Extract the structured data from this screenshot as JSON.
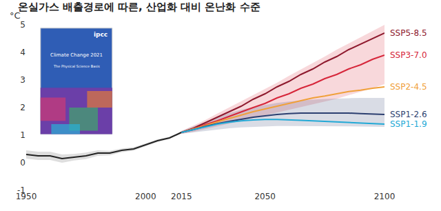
{
  "chart_data": {
    "type": "line",
    "title": "온실가스 배출경로에 따른, 산업화 대비 온난화 수준",
    "ylabel": "°C",
    "annotations": [
      "ipcc",
      "Climate Change 2021",
      "The Physical Science Basis"
    ],
    "x": [
      1950,
      1955,
      1960,
      1965,
      1970,
      1975,
      1980,
      1985,
      1990,
      1995,
      2000,
      2005,
      2010,
      2015,
      2020,
      2025,
      2030,
      2035,
      2040,
      2045,
      2050,
      2055,
      2060,
      2065,
      2070,
      2075,
      2080,
      2085,
      2090,
      2095,
      2100
    ],
    "xlim": [
      1950,
      2100
    ],
    "xticks": [
      1950,
      2000,
      2015,
      2050,
      2100
    ],
    "ylim": [
      -1,
      5
    ],
    "yticks": [
      -1,
      0,
      1,
      2,
      3,
      4,
      5
    ],
    "grid": false,
    "series": [
      {
        "color": "#222222",
        "values": [
          0.3,
          0.25,
          0.25,
          0.15,
          0.2,
          0.25,
          0.35,
          0.35,
          0.45,
          0.5,
          0.65,
          0.8,
          0.9,
          1.1,
          null,
          null,
          null,
          null,
          null,
          null,
          null,
          null,
          null,
          null,
          null,
          null,
          null,
          null,
          null,
          null,
          null
        ],
        "lower": [
          0.15,
          0.1,
          0.1,
          0.0,
          0.08,
          0.13,
          0.25,
          0.27,
          0.38,
          0.44,
          0.6,
          0.75,
          0.86,
          1.06,
          null,
          null,
          null,
          null,
          null,
          null,
          null,
          null,
          null,
          null,
          null,
          null,
          null,
          null,
          null,
          null,
          null
        ],
        "upper": [
          0.45,
          0.4,
          0.4,
          0.3,
          0.32,
          0.37,
          0.45,
          0.43,
          0.52,
          0.56,
          0.7,
          0.85,
          0.94,
          1.14,
          null,
          null,
          null,
          null,
          null,
          null,
          null,
          null,
          null,
          null,
          null,
          null,
          null,
          null,
          null,
          null,
          null
        ]
      },
      {
        "name": "SSP5-8.5",
        "color": "#8e1a2e",
        "values": [
          null,
          null,
          null,
          null,
          null,
          null,
          null,
          null,
          null,
          null,
          null,
          null,
          null,
          1.1,
          1.25,
          1.45,
          1.65,
          1.85,
          2.05,
          2.3,
          2.5,
          2.75,
          2.95,
          3.2,
          3.4,
          3.65,
          3.85,
          4.1,
          4.3,
          4.5,
          4.7
        ]
      },
      {
        "name": "SSP3-7.0",
        "color": "#d6263a",
        "values": [
          null,
          null,
          null,
          null,
          null,
          null,
          null,
          null,
          null,
          null,
          null,
          null,
          null,
          1.1,
          1.22,
          1.38,
          1.52,
          1.68,
          1.85,
          2.0,
          2.15,
          2.35,
          2.5,
          2.7,
          2.85,
          3.05,
          3.2,
          3.4,
          3.55,
          3.75,
          3.9
        ],
        "lower": [
          null,
          null,
          null,
          null,
          null,
          null,
          null,
          null,
          null,
          null,
          null,
          null,
          null,
          1.05,
          1.12,
          1.22,
          1.32,
          1.42,
          1.52,
          1.62,
          1.72,
          1.82,
          1.92,
          2.02,
          2.12,
          2.22,
          2.32,
          2.45,
          2.57,
          2.7,
          2.85
        ],
        "upper": [
          null,
          null,
          null,
          null,
          null,
          null,
          null,
          null,
          null,
          null,
          null,
          null,
          null,
          1.15,
          1.35,
          1.55,
          1.78,
          2.0,
          2.22,
          2.45,
          2.68,
          2.9,
          3.15,
          3.38,
          3.6,
          3.85,
          4.1,
          4.32,
          4.55,
          4.78,
          5.0
        ]
      },
      {
        "name": "SSP2-4.5",
        "color": "#f0a03a",
        "values": [
          null,
          null,
          null,
          null,
          null,
          null,
          null,
          null,
          null,
          null,
          null,
          null,
          null,
          1.1,
          1.22,
          1.35,
          1.48,
          1.6,
          1.72,
          1.85,
          1.95,
          2.05,
          2.15,
          2.25,
          2.35,
          2.42,
          2.5,
          2.58,
          2.63,
          2.7,
          2.75
        ]
      },
      {
        "name": "SSP1-2.6",
        "color": "#2c3f70",
        "values": [
          null,
          null,
          null,
          null,
          null,
          null,
          null,
          null,
          null,
          null,
          null,
          null,
          null,
          1.1,
          1.2,
          1.32,
          1.42,
          1.5,
          1.58,
          1.65,
          1.7,
          1.75,
          1.78,
          1.8,
          1.8,
          1.8,
          1.8,
          1.8,
          1.78,
          1.77,
          1.75
        ],
        "lower": [
          null,
          null,
          null,
          null,
          null,
          null,
          null,
          null,
          null,
          null,
          null,
          null,
          null,
          1.05,
          1.1,
          1.15,
          1.2,
          1.25,
          1.28,
          1.3,
          1.32,
          1.33,
          1.33,
          1.33,
          1.33,
          1.33,
          1.32,
          1.32,
          1.31,
          1.3,
          1.3
        ],
        "upper": [
          null,
          null,
          null,
          null,
          null,
          null,
          null,
          null,
          null,
          null,
          null,
          null,
          null,
          1.15,
          1.32,
          1.5,
          1.65,
          1.8,
          1.92,
          2.02,
          2.1,
          2.17,
          2.22,
          2.26,
          2.29,
          2.31,
          2.33,
          2.34,
          2.35,
          2.35,
          2.35
        ]
      },
      {
        "name": "SSP1-1.9",
        "color": "#22a9d6",
        "values": [
          null,
          null,
          null,
          null,
          null,
          null,
          null,
          null,
          null,
          null,
          null,
          null,
          null,
          1.1,
          1.2,
          1.3,
          1.4,
          1.47,
          1.52,
          1.55,
          1.57,
          1.57,
          1.56,
          1.54,
          1.52,
          1.5,
          1.48,
          1.46,
          1.44,
          1.42,
          1.4
        ]
      }
    ]
  }
}
